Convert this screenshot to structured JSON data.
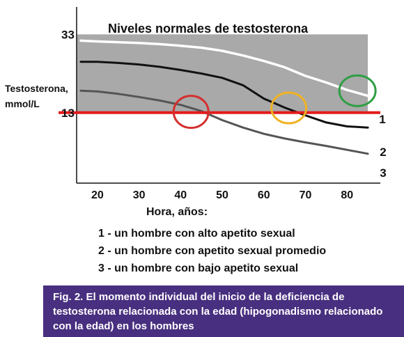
{
  "chart_data": {
    "type": "line",
    "title": "Niveles normales de testosterona",
    "ylabel_line1": "Testosterona,",
    "ylabel_line2": "mmol/L",
    "xlabel": "Hora, años:",
    "xlim": [
      15,
      88
    ],
    "ylim": [
      -5,
      40
    ],
    "x_ticks": [
      20,
      30,
      40,
      50,
      60,
      70,
      80
    ],
    "y_ticks": [
      33,
      13
    ],
    "normal_range": [
      13,
      33
    ],
    "threshold": 13,
    "series": [
      {
        "name": "1",
        "color": "#ffffff",
        "points": [
          [
            16,
            31.4
          ],
          [
            20,
            31.2
          ],
          [
            25,
            31
          ],
          [
            30,
            30.8
          ],
          [
            35,
            30.5
          ],
          [
            40,
            30.1
          ],
          [
            45,
            29.6
          ],
          [
            50,
            28.8
          ],
          [
            55,
            27.6
          ],
          [
            60,
            26.2
          ],
          [
            65,
            24.6
          ],
          [
            70,
            22.4
          ],
          [
            75,
            20.7
          ],
          [
            80,
            18.8
          ],
          [
            85,
            17.3
          ]
        ]
      },
      {
        "name": "2",
        "color": "#111111",
        "points": [
          [
            16,
            26
          ],
          [
            20,
            26
          ],
          [
            25,
            25.7
          ],
          [
            30,
            25.3
          ],
          [
            35,
            24.7
          ],
          [
            40,
            23.9
          ],
          [
            45,
            23
          ],
          [
            50,
            21.9
          ],
          [
            55,
            20
          ],
          [
            60,
            16.6
          ],
          [
            65,
            14.3
          ],
          [
            70,
            12.3
          ],
          [
            75,
            10.5
          ],
          [
            80,
            9.5
          ],
          [
            85,
            9.2
          ]
        ]
      },
      {
        "name": "3",
        "color": "#555555",
        "points": [
          [
            16,
            18.6
          ],
          [
            20,
            18.4
          ],
          [
            25,
            17.8
          ],
          [
            30,
            17
          ],
          [
            35,
            16.1
          ],
          [
            40,
            15
          ],
          [
            45,
            13.4
          ],
          [
            50,
            11.1
          ],
          [
            55,
            9.2
          ],
          [
            60,
            7.6
          ],
          [
            65,
            6.4
          ],
          [
            70,
            5.4
          ],
          [
            75,
            4.5
          ],
          [
            80,
            3.5
          ],
          [
            85,
            2.5
          ]
        ]
      }
    ],
    "highlight_circles": [
      {
        "x": 42.5,
        "y": 13.2,
        "color": "#d32f2f"
      },
      {
        "x": 66,
        "y": 14.2,
        "color": "#f0b323"
      },
      {
        "x": 82.5,
        "y": 18.6,
        "color": "#2e9e44",
        "label": "1"
      }
    ],
    "colors": {
      "threshold": "#e41b1b",
      "band": "#a9a9a9"
    }
  },
  "legend": [
    "1 - un hombre con alto apetito sexual",
    "2 - un hombre con apetito sexual promedio",
    "3 - un hombre con bajo apetito sexual"
  ],
  "caption": "Fig. 2. El momento individual del inicio de la deficiencia de testosterona relacionada con la edad (hipogonadismo relacionado con la edad) en los hombres"
}
